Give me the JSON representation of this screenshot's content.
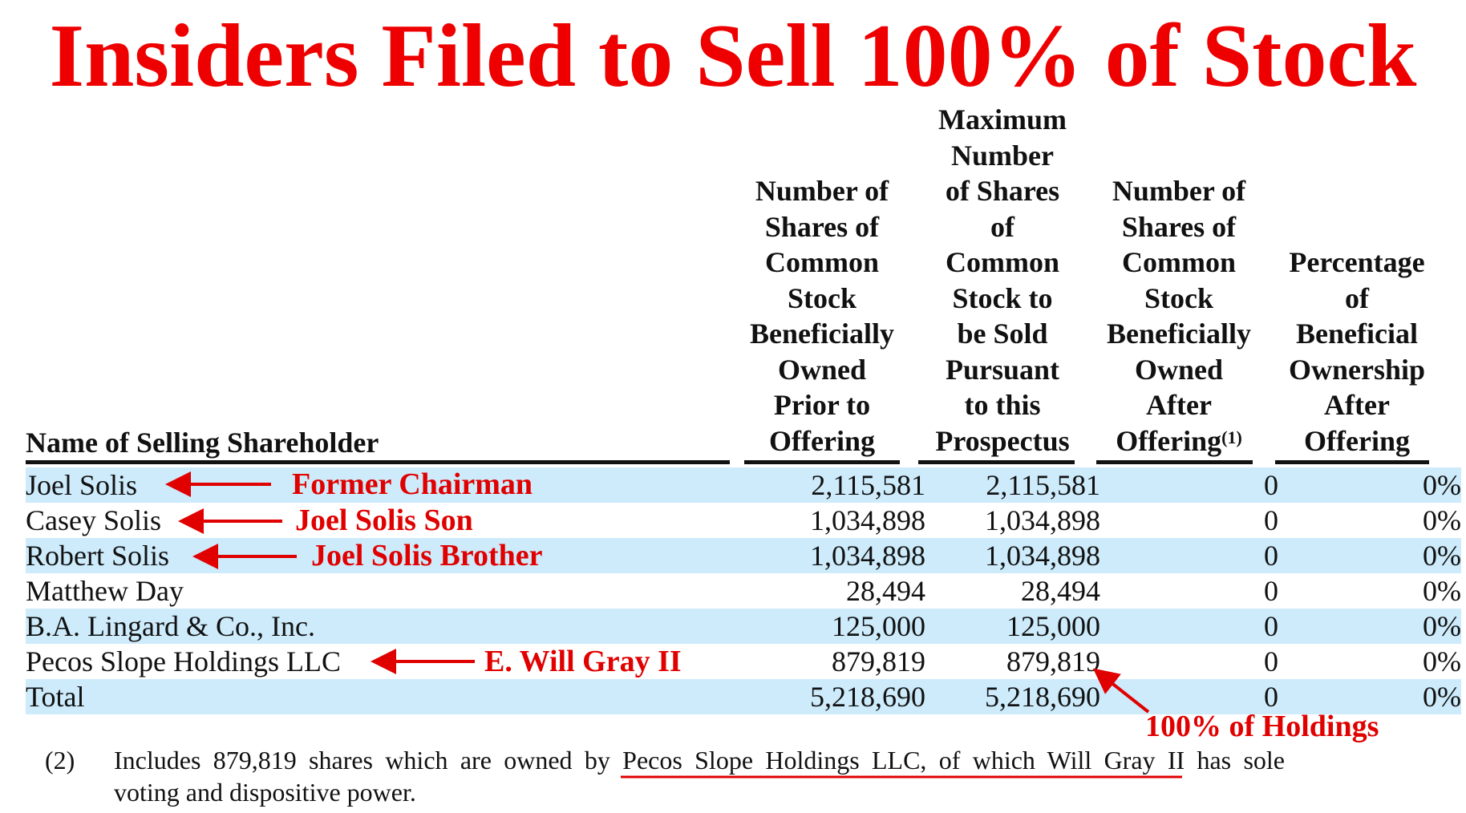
{
  "title": "Insiders Filed to Sell 100% of Stock",
  "table": {
    "headers": {
      "name": "Name of Selling Shareholder",
      "col1": [
        "Number of",
        "Shares of",
        "Common",
        "Stock",
        "Beneficially",
        "Owned",
        "Prior to",
        "Offering"
      ],
      "col2": [
        "Maximum",
        "Number",
        "of Shares",
        "of",
        "Common",
        "Stock to",
        "be Sold",
        "Pursuant",
        "to this",
        "Prospectus"
      ],
      "col3": [
        "Number of",
        "Shares of",
        "Common",
        "Stock",
        "Beneficially",
        "Owned",
        "After",
        "Offering"
      ],
      "col3_sup": "(1)",
      "col4": [
        "Percentage",
        "of",
        "Beneficial",
        "Ownership",
        "After",
        "Offering"
      ]
    },
    "rows": [
      {
        "name": "Joel Solis",
        "prior": "2,115,581",
        "sold": "2,115,581",
        "after": "0",
        "pct": "0%"
      },
      {
        "name": "Casey Solis",
        "prior": "1,034,898",
        "sold": "1,034,898",
        "after": "0",
        "pct": "0%"
      },
      {
        "name": "Robert Solis",
        "prior": "1,034,898",
        "sold": "1,034,898",
        "after": "0",
        "pct": "0%"
      },
      {
        "name": "Matthew Day",
        "prior": "28,494",
        "sold": "28,494",
        "after": "0",
        "pct": "0%"
      },
      {
        "name": "B.A. Lingard & Co., Inc.",
        "prior": "125,000",
        "sold": "125,000",
        "after": "0",
        "pct": "0%"
      },
      {
        "name": "Pecos Slope Holdings LLC",
        "prior": "879,819",
        "sold": "879,819",
        "after": "0",
        "pct": "0%"
      },
      {
        "name": "Total",
        "prior": "5,218,690",
        "sold": "5,218,690",
        "after": "0",
        "pct": "0%"
      }
    ]
  },
  "annotations": {
    "joel": "Former Chairman",
    "casey": "Joel Solis Son",
    "robert": "Joel Solis Brother",
    "pecos": "E. Will Gray II",
    "holdings": "100% of Holdings"
  },
  "footnote": {
    "number": "(2)",
    "line1": "Includes 879,819 shares which are owned by Pecos Slope Holdings LLC, of which Will Gray II has sole",
    "line2": "voting and dispositive power."
  },
  "colors": {
    "annotation": "#e00000",
    "row_band": "#cdebfb",
    "title": "#ee0000"
  }
}
